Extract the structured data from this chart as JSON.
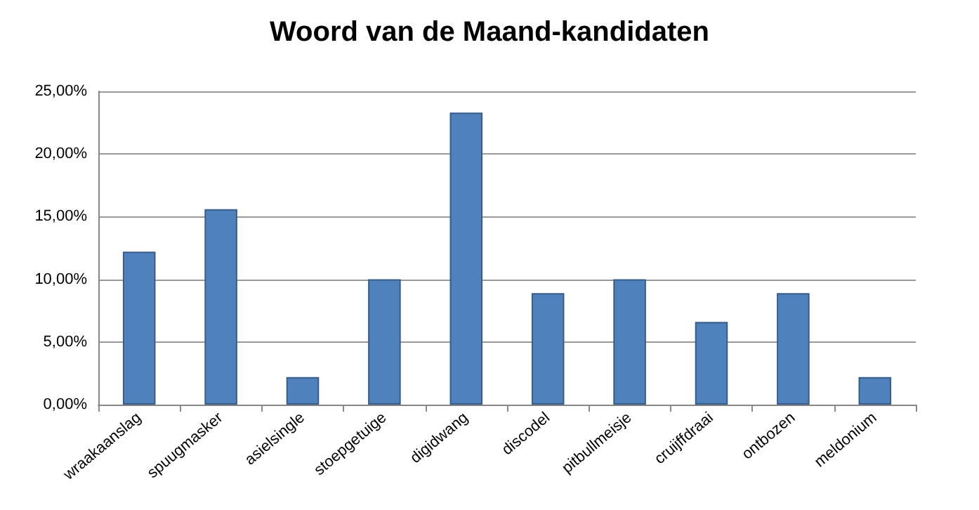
{
  "chart_data": {
    "type": "bar",
    "title": "Woord van de Maand-kandidaten",
    "categories": [
      "wraakaanslag",
      "spuugmasker",
      "asielsingle",
      "stoepgetuige",
      "digidwang",
      "discodel",
      "pitbullmeisje",
      "cruijffdraai",
      "ontbozen",
      "meldonium"
    ],
    "values": [
      12.2,
      15.6,
      2.2,
      10.0,
      23.3,
      8.9,
      10.0,
      6.6,
      8.9,
      2.2
    ],
    "color": "#4f81bd",
    "ylim": [
      0,
      25
    ],
    "yticks": [
      {
        "value": 0,
        "label": "0,00%"
      },
      {
        "value": 5,
        "label": "5,00%"
      },
      {
        "value": 10,
        "label": "10,00%"
      },
      {
        "value": 15,
        "label": "15,00%"
      },
      {
        "value": 20,
        "label": "20,00%"
      },
      {
        "value": 25,
        "label": "25,00%"
      }
    ],
    "grid": "y"
  }
}
